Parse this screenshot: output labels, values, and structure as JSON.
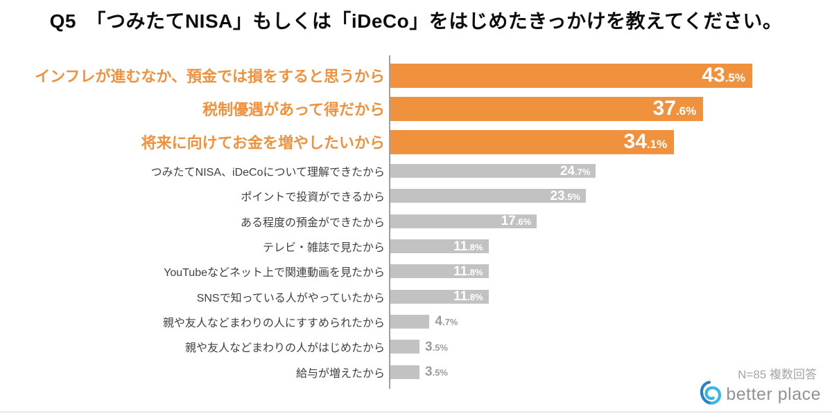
{
  "title": "Q5　「つみたてNISA」もしくは「iDeCo」をはじめたきっかけを教えてください。",
  "note": "N=85 複数回答",
  "logo": {
    "text": "better place",
    "icon": "betterplace-swirl-icon"
  },
  "colors": {
    "bar_highlight": "#F0913D",
    "bar_muted": "#C2C2C2",
    "label_highlight": "#F0913D",
    "label_muted": "#404040",
    "value_inside": "#FFFFFF",
    "value_outside": "#9C9C9C",
    "axis": "#9E9E9E",
    "note_gray": "#A5A5A5",
    "logo_gray": "#8F9396",
    "logo_blue_dark": "#2B7FC6",
    "logo_blue_light": "#35B8E8"
  },
  "chart_data": {
    "type": "bar",
    "orientation": "horizontal",
    "unit": "%",
    "xlim": [
      0,
      45
    ],
    "grid": false,
    "legend": false,
    "highlighted_top_n": 3,
    "sample_note": "N=85 複数回答",
    "categories": [
      "インフレが進むなか、預金では損をすると思うから",
      "税制優遇があって得だから",
      "将来に向けてお金を増やしたいから",
      "つみたてNISA、iDeCoについて理解できたから",
      "ポイントで投資ができるから",
      "ある程度の預金ができたから",
      "テレビ・雑誌で見たから",
      "YouTubeなどネット上で関連動画を見たから",
      "SNSで知っている人がやっていたから",
      "親や友人などまわりの人にすすめられたから",
      "親や友人などまわりの人がはじめたから",
      "給与が増えたから"
    ],
    "values": [
      43.5,
      37.6,
      34.1,
      24.7,
      23.5,
      17.6,
      11.8,
      11.8,
      11.8,
      4.7,
      3.5,
      3.5
    ],
    "rows": [
      {
        "label": "インフレが進むなか、預金では損をすると思うから",
        "value": 43.5,
        "value_int": "43",
        "value_frac": ".5%",
        "emphasis": true,
        "value_position": "inside"
      },
      {
        "label": "税制優遇があって得だから",
        "value": 37.6,
        "value_int": "37",
        "value_frac": ".6%",
        "emphasis": true,
        "value_position": "inside"
      },
      {
        "label": "将来に向けてお金を増やしたいから",
        "value": 34.1,
        "value_int": "34",
        "value_frac": ".1%",
        "emphasis": true,
        "value_position": "inside"
      },
      {
        "label": "つみたてNISA、iDeCoについて理解できたから",
        "value": 24.7,
        "value_int": "24",
        "value_frac": ".7%",
        "emphasis": false,
        "value_position": "inside"
      },
      {
        "label": "ポイントで投資ができるから",
        "value": 23.5,
        "value_int": "23",
        "value_frac": ".5%",
        "emphasis": false,
        "value_position": "inside"
      },
      {
        "label": "ある程度の預金ができたから",
        "value": 17.6,
        "value_int": "17",
        "value_frac": ".6%",
        "emphasis": false,
        "value_position": "inside"
      },
      {
        "label": "テレビ・雑誌で見たから",
        "value": 11.8,
        "value_int": "11",
        "value_frac": ".8%",
        "emphasis": false,
        "value_position": "inside"
      },
      {
        "label": "YouTubeなどネット上で関連動画を見たから",
        "value": 11.8,
        "value_int": "11",
        "value_frac": ".8%",
        "emphasis": false,
        "value_position": "inside"
      },
      {
        "label": "SNSで知っている人がやっていたから",
        "value": 11.8,
        "value_int": "11",
        "value_frac": ".8%",
        "emphasis": false,
        "value_position": "inside"
      },
      {
        "label": "親や友人などまわりの人にすすめられたから",
        "value": 4.7,
        "value_int": "4",
        "value_frac": ".7%",
        "emphasis": false,
        "value_position": "outside"
      },
      {
        "label": "親や友人などまわりの人がはじめたから",
        "value": 3.5,
        "value_int": "3",
        "value_frac": ".5%",
        "emphasis": false,
        "value_position": "outside"
      },
      {
        "label": "給与が増えたから",
        "value": 3.5,
        "value_int": "3",
        "value_frac": ".5%",
        "emphasis": false,
        "value_position": "outside"
      }
    ]
  }
}
